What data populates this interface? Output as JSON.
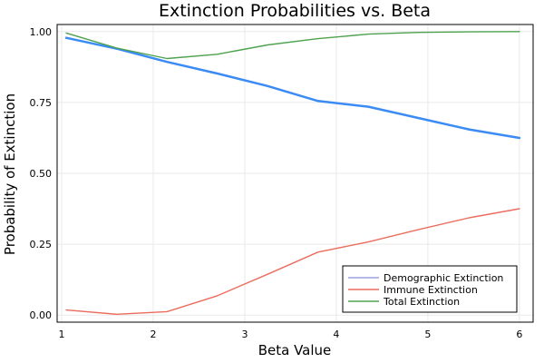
{
  "chart_data": {
    "type": "line",
    "title": "Extinction Probabilities vs. Beta",
    "xlabel": "Beta Value",
    "ylabel": "Probability of Extinction",
    "xlim": [
      0.95,
      6.15
    ],
    "ylim": [
      -0.025,
      1.025
    ],
    "xticks": [
      1,
      2,
      3,
      4,
      5,
      6
    ],
    "yticks": [
      0.0,
      0.25,
      0.5,
      0.75,
      1.0
    ],
    "xtick_labels": [
      "1",
      "2",
      "3",
      "4",
      "5",
      "6"
    ],
    "ytick_labels": [
      "0.00",
      "0.25",
      "0.50",
      "0.75",
      "1.00"
    ],
    "grid": true,
    "legend_position": "bottom-right",
    "x": [
      1.05,
      1.6,
      2.15,
      2.7,
      3.25,
      3.8,
      4.35,
      4.9,
      5.45,
      6.0
    ],
    "series": [
      {
        "name": "Demographic Extinction",
        "color": "#3b8bf5",
        "line_width": 2.5,
        "legend_color": "#9aa2e0",
        "values": [
          0.978,
          0.94,
          0.893,
          0.852,
          0.808,
          0.755,
          0.735,
          0.695,
          0.655,
          0.625
        ]
      },
      {
        "name": "Immune Extinction",
        "color": "#eb6d5e",
        "line_width": 1.4,
        "legend_color": "#eb6d5e",
        "values": [
          0.018,
          0.003,
          0.012,
          0.068,
          0.144,
          0.222,
          0.258,
          0.302,
          0.343,
          0.375
        ]
      },
      {
        "name": "Total Extinction",
        "color": "#4ea24e",
        "line_width": 1.4,
        "legend_color": "#4ea24e",
        "values": [
          0.995,
          0.942,
          0.905,
          0.92,
          0.953,
          0.975,
          0.991,
          0.997,
          0.999,
          1.0
        ]
      }
    ]
  }
}
